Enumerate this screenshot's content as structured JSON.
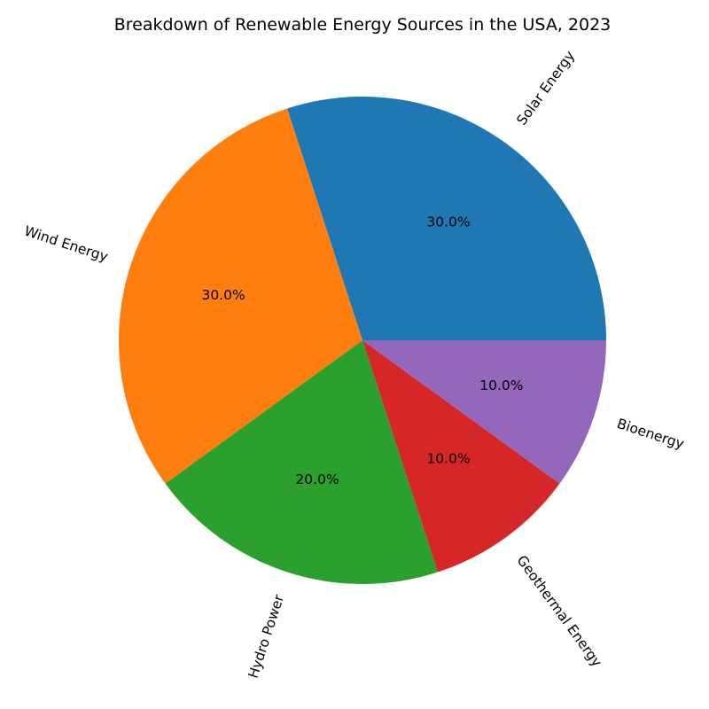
{
  "chart_data": {
    "type": "pie",
    "title": "Breakdown of Renewable Energy Sources in the USA, 2023",
    "labels": [
      "Solar Energy",
      "Wind Energy",
      "Hydro Power",
      "Geothermal Energy",
      "Bioenergy"
    ],
    "values": [
      30,
      30,
      20,
      10,
      10
    ],
    "percent_labels": [
      "30.0%",
      "30.0%",
      "20.0%",
      "10.0%",
      "10.0%"
    ],
    "colors": [
      "#1f77b4",
      "#ff7f0e",
      "#2ca02c",
      "#d62728",
      "#9467bd"
    ],
    "start_angle_deg": 0,
    "direction": "counterclockwise",
    "label_rotation": "radial"
  }
}
